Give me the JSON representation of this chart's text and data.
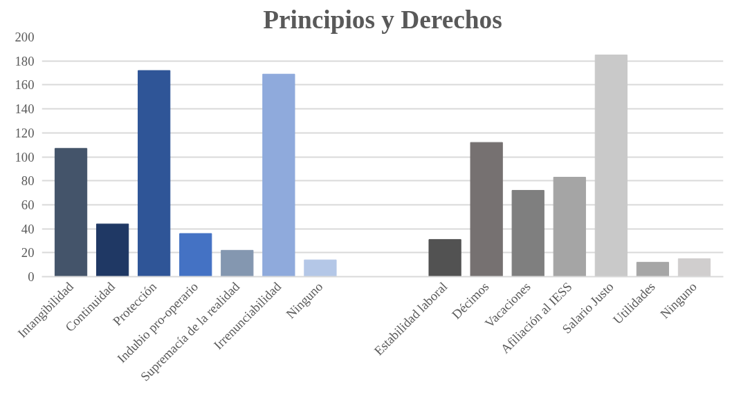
{
  "chart_data": {
    "type": "bar",
    "title": "Principios y Derechos",
    "categories": [
      "Intangibilidad",
      "Continuidad",
      "Protección",
      "Indubio pro-operario",
      "Supremacía de la realidad",
      "Irrenunciabilidad",
      "Ninguno",
      null,
      null,
      "Estabilidad laboral",
      "Décimos",
      "Vacaciones",
      "Afiliación al IESS",
      "Salario Justo",
      "Utilidades",
      "Ninguno"
    ],
    "values": [
      107,
      44,
      172,
      36,
      22,
      169,
      14,
      null,
      null,
      31,
      112,
      72,
      83,
      185,
      12,
      15
    ],
    "colors": [
      "#44546a",
      "#1f3864",
      "#2f5597",
      "#4472c4",
      "#8497b0",
      "#8faadc",
      "#b4c7e7",
      "#ffffff",
      "#ffffff",
      "#525252",
      "#767171",
      "#7f7f7f",
      "#a5a5a5",
      "#c9c9c9",
      "#a6a6a6",
      "#d0cece"
    ],
    "ylim": [
      0,
      200
    ],
    "yticks": [
      0,
      20,
      40,
      60,
      80,
      100,
      120,
      140,
      160,
      180,
      200
    ],
    "grid": "y"
  }
}
